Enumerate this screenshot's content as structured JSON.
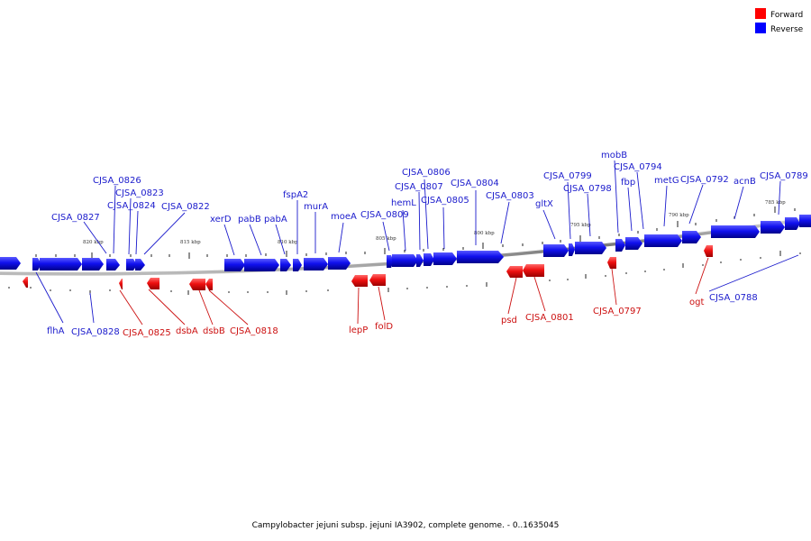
{
  "legend": {
    "forward_label": "Forward",
    "reverse_label": "Reverse",
    "forward_color": "#ff0000",
    "reverse_color": "#0000ff"
  },
  "caption": "Campylobacter jejuni subsp. jejuni IA3902, complete genome. - 0..1635045",
  "scale_labels": [
    "820 kbp",
    "815 kbp",
    "810 kbp",
    "805 kbp",
    "800 kbp",
    "795 kbp",
    "790 kbp",
    "785 kbp"
  ],
  "reverse_genes": [
    "CJSA_0827",
    "CJSA_0826",
    "CJSA_0823",
    "CJSA_0824",
    "CJSA_0822",
    "xerD",
    "pabB",
    "pabA",
    "fspA2",
    "murA",
    "moeA",
    "CJSA_0809",
    "hemL",
    "CJSA_0807",
    "CJSA_0806",
    "CJSA_0805",
    "CJSA_0804",
    "CJSA_0803",
    "gltX",
    "CJSA_0799",
    "CJSA_0798",
    "mobB",
    "fbp",
    "CJSA_0794",
    "metG",
    "CJSA_0792",
    "acnB",
    "CJSA_0789",
    "flhA",
    "CJSA_0828",
    "CJSA_0788"
  ],
  "forward_genes": [
    "CJSA_0825",
    "dsbA",
    "dsbB",
    "CJSA_0818",
    "lepP",
    "folD",
    "psd",
    "CJSA_0801",
    "CJSA_0797",
    "ogt"
  ]
}
